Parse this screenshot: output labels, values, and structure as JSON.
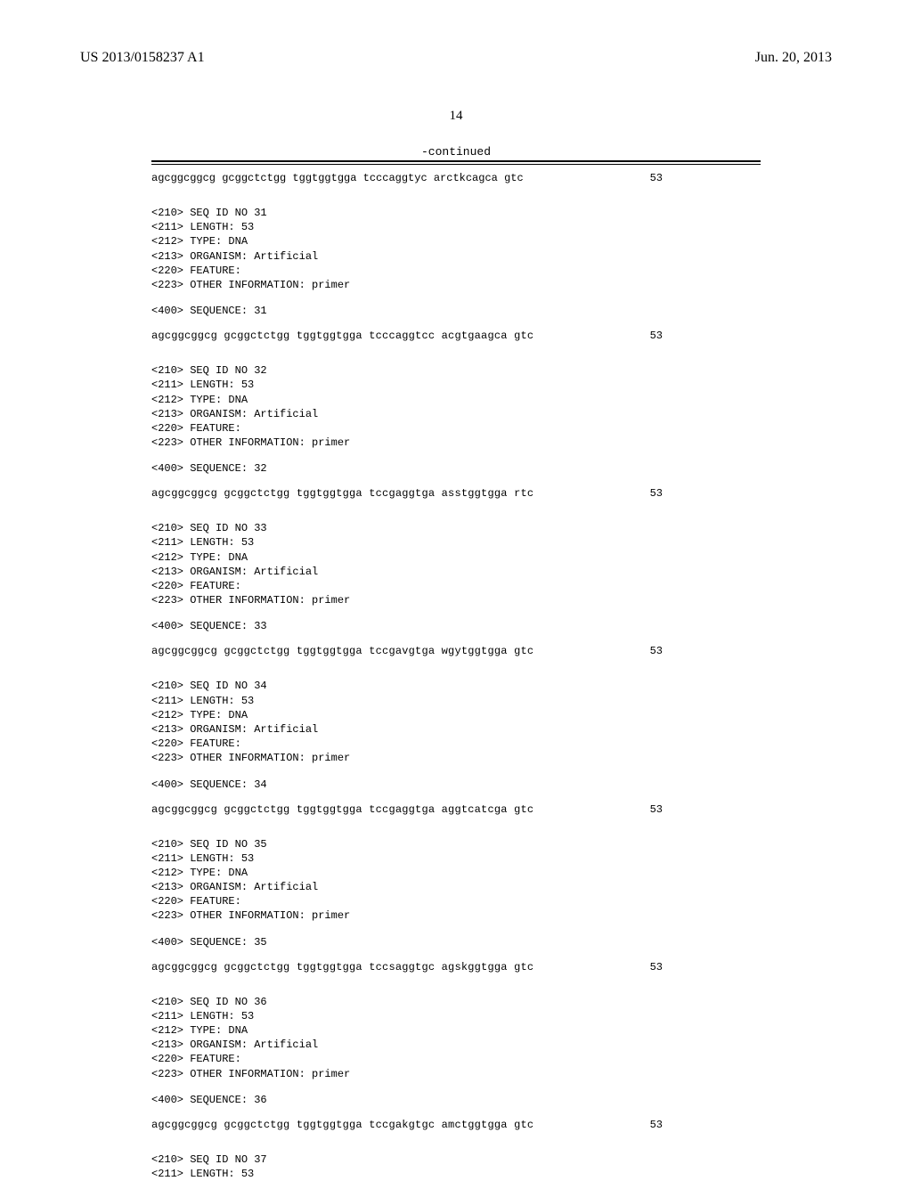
{
  "header": {
    "pub_number": "US 2013/0158237 A1",
    "pub_date": "Jun. 20, 2013"
  },
  "page_number": "14",
  "continued_label": "-continued",
  "first_sequence": {
    "sequence": "agcggcggcg gcggctctgg tggtggtgga tcccaggtyc arctkcagca gtc",
    "length": "53"
  },
  "entries": [
    {
      "seq_id": "31",
      "length": "53",
      "type": "DNA",
      "organism": "Artificial",
      "other_info": "primer",
      "sequence": "agcggcggcg gcggctctgg tggtggtgga tcccaggtcc acgtgaagca gtc",
      "seq_len": "53"
    },
    {
      "seq_id": "32",
      "length": "53",
      "type": "DNA",
      "organism": "Artificial",
      "other_info": "primer",
      "sequence": "agcggcggcg gcggctctgg tggtggtgga tccgaggtga asstggtgga rtc",
      "seq_len": "53"
    },
    {
      "seq_id": "33",
      "length": "53",
      "type": "DNA",
      "organism": "Artificial",
      "other_info": "primer",
      "sequence": "agcggcggcg gcggctctgg tggtggtgga tccgavgtga wgytggtgga gtc",
      "seq_len": "53"
    },
    {
      "seq_id": "34",
      "length": "53",
      "type": "DNA",
      "organism": "Artificial",
      "other_info": "primer",
      "sequence": "agcggcggcg gcggctctgg tggtggtgga tccgaggtga aggtcatcga gtc",
      "seq_len": "53"
    },
    {
      "seq_id": "35",
      "length": "53",
      "type": "DNA",
      "organism": "Artificial",
      "other_info": "primer",
      "sequence": "agcggcggcg gcggctctgg tggtggtgga tccsaggtgc agskggtgga gtc",
      "seq_len": "53"
    },
    {
      "seq_id": "36",
      "length": "53",
      "type": "DNA",
      "organism": "Artificial",
      "other_info": "primer",
      "sequence": "agcggcggcg gcggctctgg tggtggtgga tccgakgtgc amctggtgga gtc",
      "seq_len": "53"
    }
  ],
  "trailing": {
    "seq_id": "37",
    "length": "53"
  },
  "labels": {
    "seq_id_prefix": "<210> SEQ ID NO ",
    "length_prefix": "<211> LENGTH: ",
    "type_prefix": "<212> TYPE: ",
    "organism_prefix": "<213> ORGANISM: ",
    "feature_prefix": "<220> FEATURE:",
    "other_info_prefix": "<223> OTHER INFORMATION: ",
    "sequence_prefix": "<400> SEQUENCE: "
  }
}
